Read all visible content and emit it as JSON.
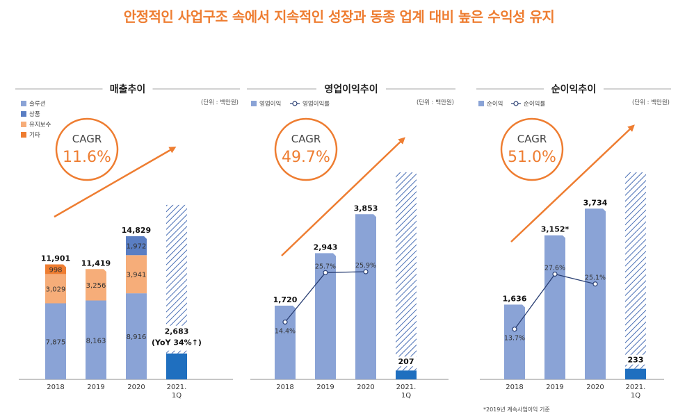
{
  "headline": "안정적인 사업구조 속에서 지속적인 성장과 동종 업계 대비 높은 수익성 유지",
  "colors": {
    "orange": "#ee7d31",
    "bar": "#8aa3d6",
    "dark": "#1f6fbf",
    "lightorange": "#f6ad79",
    "steel": "#5a7ec3",
    "line": "#2a3f73"
  },
  "chart_data": [
    {
      "type": "bar",
      "title": "매출추이",
      "unit": "(단위 : 백만원)",
      "categories": [
        "2018",
        "2019",
        "2020",
        "2021.\n1Q"
      ],
      "legend": [
        "솔루션",
        "상품",
        "유지보수",
        "기타"
      ],
      "series": [
        {
          "name": "솔루션",
          "values": [
            7875,
            8163,
            8916,
            null
          ]
        },
        {
          "name": "유지보수",
          "values": [
            3029,
            3256,
            3941,
            null
          ]
        },
        {
          "name": "상품",
          "values": [
            null,
            null,
            1972,
            null
          ]
        },
        {
          "name": "기타",
          "values": [
            998,
            null,
            null,
            null
          ]
        }
      ],
      "totals": [
        "11,901",
        "11,419",
        "14,829",
        "2,683"
      ],
      "q1_value": 2683,
      "q1_label": "(YoY 34%↑)",
      "cagr_label": "CAGR",
      "cagr": "11.6%"
    },
    {
      "type": "bar",
      "title": "영업이익추이",
      "unit": "(단위 : 백만원)",
      "categories": [
        "2018",
        "2019",
        "2020",
        "2021.\n1Q"
      ],
      "legend": [
        "영업이익",
        "영업이익률"
      ],
      "values": [
        1720,
        2943,
        3853,
        207
      ],
      "value_labels": [
        "1,720",
        "2,943",
        "3,853",
        "207"
      ],
      "rate": [
        14.4,
        25.7,
        25.9
      ],
      "rate_labels": [
        "14.4%",
        "25.7%",
        "25.9%"
      ],
      "cagr_label": "CAGR",
      "cagr": "49.7%"
    },
    {
      "type": "bar",
      "title": "순이익추이",
      "unit": "(단위 : 백만원)",
      "categories": [
        "2018",
        "2019",
        "2020",
        "2021.\n1Q"
      ],
      "legend": [
        "순이익",
        "순이익률"
      ],
      "values": [
        1636,
        3152,
        3734,
        233
      ],
      "value_labels": [
        "1,636",
        "3,152*",
        "3,734",
        "233"
      ],
      "rate": [
        13.7,
        27.6,
        25.1
      ],
      "rate_labels": [
        "13.7%",
        "27.6%",
        "25.1%"
      ],
      "cagr_label": "CAGR",
      "cagr": "51.0%",
      "note": "*2019년 계속사업이익 기준"
    }
  ]
}
